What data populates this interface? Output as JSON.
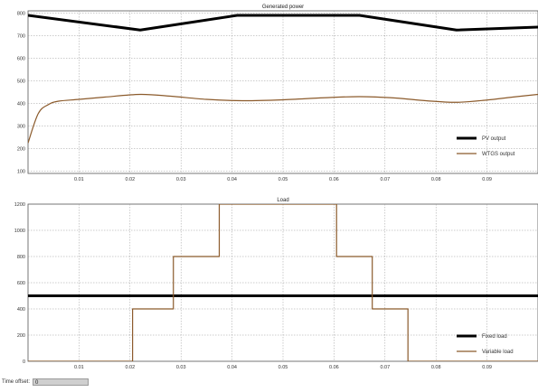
{
  "chart_data": [
    {
      "type": "line",
      "title": "Generated power",
      "xlabel": "",
      "ylabel": "",
      "xlim": [
        0,
        0.1
      ],
      "ylim": [
        90,
        810
      ],
      "x_ticks": [
        0.01,
        0.02,
        0.03,
        0.04,
        0.05,
        0.06,
        0.07,
        0.08,
        0.09
      ],
      "x_tick_labels": [
        "0.01",
        "0.02",
        "0.03",
        "0.04",
        "0.05",
        "0.06",
        "0.07",
        "0.08",
        "0.09"
      ],
      "y_ticks": [
        100,
        200,
        300,
        400,
        500,
        600,
        700,
        800
      ],
      "y_tick_labels": [
        "100",
        "200",
        "300",
        "400",
        "500",
        "600",
        "700",
        "800"
      ],
      "grid": true,
      "legend_position": "bottom-right",
      "series": [
        {
          "name": "PV output",
          "color": "#000000",
          "x": [
            0,
            0.022,
            0.041,
            0.065,
            0.084,
            0.1
          ],
          "y": [
            790,
            725,
            790,
            790,
            725,
            738
          ]
        },
        {
          "name": "WTGS output",
          "color": "#8B5A2B",
          "x": [
            0,
            0.002,
            0.004,
            0.006,
            0.01,
            0.015,
            0.022,
            0.028,
            0.035,
            0.042,
            0.05,
            0.058,
            0.065,
            0.072,
            0.078,
            0.084,
            0.09,
            0.095,
            0.1
          ],
          "y": [
            225,
            355,
            395,
            410,
            418,
            428,
            440,
            432,
            418,
            412,
            416,
            425,
            430,
            424,
            412,
            405,
            415,
            428,
            440
          ]
        }
      ]
    },
    {
      "type": "line",
      "title": "Load",
      "xlabel": "",
      "ylabel": "",
      "xlim": [
        0,
        0.1
      ],
      "ylim": [
        0,
        1200
      ],
      "x_ticks": [
        0.01,
        0.02,
        0.03,
        0.04,
        0.05,
        0.06,
        0.07,
        0.08,
        0.09
      ],
      "x_tick_labels": [
        "0.01",
        "0.02",
        "0.03",
        "0.04",
        "0.05",
        "0.06",
        "0.07",
        "0.08",
        "0.09"
      ],
      "y_ticks": [
        0,
        200,
        400,
        600,
        800,
        1000,
        1200
      ],
      "y_tick_labels": [
        "0",
        "200",
        "400",
        "600",
        "800",
        "1000",
        "1200"
      ],
      "grid": true,
      "legend_position": "bottom-right",
      "series": [
        {
          "name": "Fixed load",
          "color": "#000000",
          "x": [
            0,
            0.1
          ],
          "y": [
            500,
            500
          ]
        },
        {
          "name": "Variable load",
          "color": "#8B5A2B",
          "x": [
            0,
            0.0205,
            0.0205,
            0.0285,
            0.0285,
            0.0375,
            0.0375,
            0.0605,
            0.0605,
            0.0675,
            0.0675,
            0.0745,
            0.0745,
            0.1
          ],
          "y": [
            0,
            0,
            400,
            400,
            800,
            800,
            1200,
            1200,
            800,
            800,
            400,
            400,
            0,
            0
          ]
        }
      ]
    }
  ],
  "footer": {
    "time_offset_label": "Time offset:",
    "time_offset_value": "0"
  }
}
